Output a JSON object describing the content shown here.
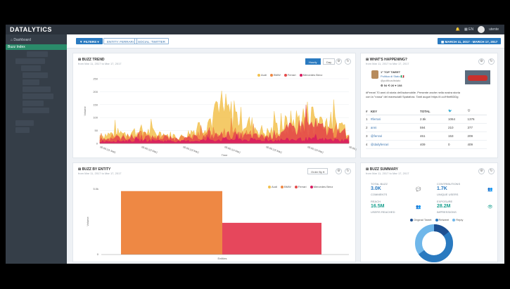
{
  "app": {
    "brand": "DATALYTICS",
    "lang": "EN",
    "user": "utente"
  },
  "sidebar": {
    "dashboard": "Dashboard",
    "active": "Buzz Index"
  },
  "filters": {
    "filters_label": "▼ FILTERS ▾",
    "entity": "ENTITY: FERRARI",
    "social": "SOCIAL: TWITTER",
    "date_range": "MARCH 11, 2017 - MARCH 17, 2017"
  },
  "trend": {
    "title": "BUZZ TREND",
    "subtitle": "from Mar 11, 2017 to Mar 17, 2017",
    "toggle_hourly": "Hourly",
    "toggle_day": "Day",
    "legend": [
      {
        "name": "Audi",
        "color": "#f2c14e"
      },
      {
        "name": "BMW",
        "color": "#ee8844"
      },
      {
        "name": "Ferrari",
        "color": "#e44a4a"
      },
      {
        "name": "Mercedes Benz",
        "color": "#d81b60"
      }
    ],
    "ylabel": "Volume",
    "xlabel": "Time",
    "yticks": [
      "250",
      "200",
      "150",
      "100",
      "50",
      "0"
    ],
    "xticks": [
      "00:00 (11 Mar)",
      "00:00 (12 Mar)",
      "00:00 (13 Mar)",
      "00:00 (14 Mar)",
      "00:00 (15 Mar)",
      "00:00 (16 Mar)",
      "00:00 (17 Mar)"
    ]
  },
  "chart_data": {
    "type": "area",
    "title": "BUZZ TREND",
    "xlabel": "Time",
    "ylabel": "Volume",
    "ylim": [
      0,
      250
    ],
    "x": [
      "11 Mar",
      "12 Mar",
      "13 Mar",
      "14 Mar",
      "15 Mar",
      "16 Mar",
      "17 Mar"
    ],
    "series": [
      {
        "name": "Audi",
        "values": [
          40,
          60,
          30,
          160,
          50,
          140,
          70
        ]
      },
      {
        "name": "BMW",
        "values": [
          30,
          40,
          25,
          60,
          30,
          70,
          40
        ]
      },
      {
        "name": "Ferrari",
        "values": [
          20,
          30,
          20,
          40,
          30,
          90,
          30
        ]
      },
      {
        "name": "Mercedes Benz",
        "values": [
          10,
          15,
          10,
          20,
          15,
          20,
          15
        ]
      }
    ],
    "legend": "top-right",
    "grid": true
  },
  "happen": {
    "title": "WHAT'S HAPPENING?",
    "subtitle": "from Mar 11, 2017 to Mar 17, 2017",
    "top_label": "1° TOP TWEET",
    "account": "Politica di Stato 🇮🇹",
    "handle": "@politicadistato",
    "stats": "⚙ 54  ⟲ 26  ♥ 108",
    "tweet_l1": "#Ferrari 70 anni di storia dell'automobile. Presente anche nella nostra storia",
    "tweet_l2": "con la \"rossa\" del marescialli Spatafora. Tanti auguri https://t.co/Hhnf6DDg",
    "columns": [
      "#",
      "KEY",
      "TOTAL",
      "🐦",
      "♡"
    ],
    "rows": [
      [
        "1",
        "#ferrari",
        "2.5k",
        "1064",
        "1376"
      ],
      [
        "2",
        "anni",
        "594",
        "210",
        "377"
      ],
      [
        "3",
        "@ferrari",
        "461",
        "153",
        "209"
      ],
      [
        "4",
        "@dailyferrari",
        "409",
        "0",
        "409"
      ]
    ]
  },
  "entity": {
    "title": "BUZZ BY ENTITY",
    "subtitle": "from Mar 11, 2017 to Mar 17, 2017",
    "order_by": "Order By ▾",
    "legend": [
      {
        "name": "Audi",
        "color": "#f2c14e"
      },
      {
        "name": "BMW",
        "color": "#ee8844"
      },
      {
        "name": "Ferrari",
        "color": "#e44a4a"
      },
      {
        "name": "Mercedes Benz",
        "color": "#d81b60"
      }
    ],
    "ytick_top": "5.0k",
    "ytick_zero": "0",
    "ylabel": "Volume",
    "xlabel": "Entities",
    "bmw_value": 4800,
    "ferrari_value": 2400,
    "ymax": 5000
  },
  "summary": {
    "title": "BUZZ SUMMARY",
    "subtitle": "from Mar 11, 2017 to Mar 17, 2017",
    "total_buzz_label": "TOTAL BUZZ",
    "total_buzz": "3.0K",
    "comments_label": "COMMENTS",
    "contrib_label": "CONTRIBUTIONS",
    "contrib": "1.7K",
    "unique_label": "UNIQUE USERS",
    "reach_label": "REACH",
    "reach": "16.5M",
    "users_reached_label": "USERS REACHED",
    "exposure_label": "EXPOSURE",
    "exposure": "28.2M",
    "impressions_label": "IMPRESSIONS",
    "donut_legend": [
      {
        "name": "Original Tweet",
        "color": "#1d4f91"
      },
      {
        "name": "Retweet",
        "color": "#2a7ac0"
      },
      {
        "name": "Reply",
        "color": "#6fb7ea"
      }
    ]
  }
}
